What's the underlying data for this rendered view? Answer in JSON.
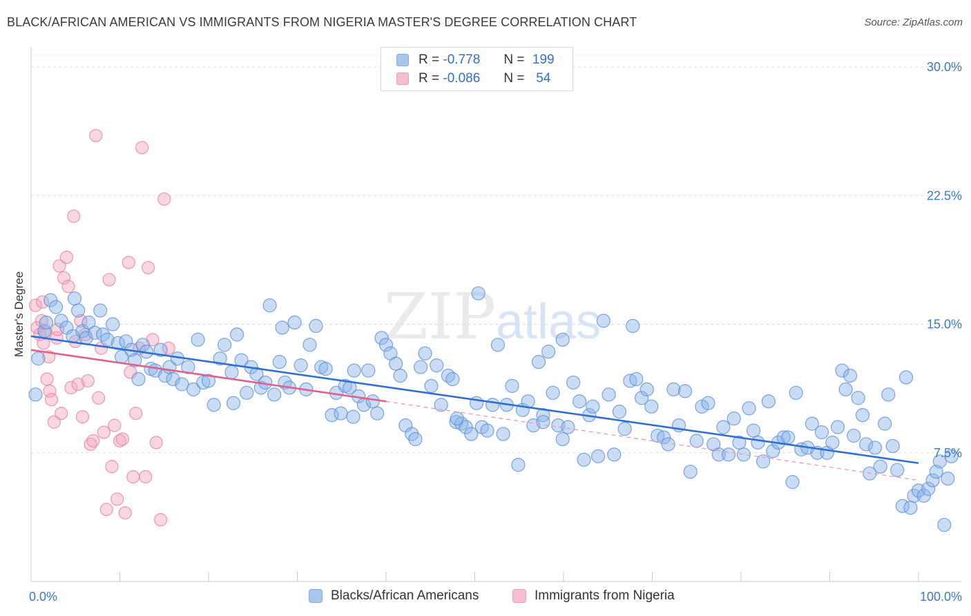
{
  "title": "BLACK/AFRICAN AMERICAN VS IMMIGRANTS FROM NIGERIA MASTER'S DEGREE CORRELATION CHART",
  "source": "Source: ZipAtlas.com",
  "watermark": {
    "zip": "ZIP",
    "atlas": "atlas"
  },
  "legend_top": {
    "rows": [
      {
        "r_label": "R =",
        "r_value": "-0.778",
        "n_label": "N =",
        "n_value": "199",
        "color": "#8ab4e8"
      },
      {
        "r_label": "R =",
        "r_value": "-0.086",
        "n_label": "N =",
        "n_value": "54",
        "color": "#f2a7bd"
      }
    ]
  },
  "legend_bottom": [
    "Blacks/African Americans",
    "Immigrants from Nigeria"
  ],
  "chart_data": {
    "type": "scatter",
    "xlabel": "",
    "ylabel": "Master's Degree",
    "xlim": [
      0,
      100
    ],
    "ylim": [
      0,
      31
    ],
    "x_tick_labels": [
      {
        "value": 0,
        "label": "0.0%"
      },
      {
        "value": 100,
        "label": "100.0%"
      }
    ],
    "y_tick_labels": [
      {
        "value": 7.5,
        "label": "7.5%"
      },
      {
        "value": 15.0,
        "label": "15.0%"
      },
      {
        "value": 22.5,
        "label": "22.5%"
      },
      {
        "value": 30.0,
        "label": "30.0%"
      }
    ],
    "grid": true,
    "series": [
      {
        "name": "Blacks/African Americans",
        "color": "#8ab4e8",
        "stroke": "#5b8fd6",
        "trend": {
          "x": [
            0,
            100
          ],
          "y": [
            14.3,
            6.9
          ],
          "color": "#2f6fd0"
        },
        "dashed_trend": {
          "x": [
            40,
            100
          ],
          "y": [
            10.5,
            5.9
          ],
          "color": "#e59ab4"
        },
        "points": [
          [
            0.5,
            10.9
          ],
          [
            0.8,
            13.0
          ],
          [
            1.5,
            14.6
          ],
          [
            1.7,
            15.1
          ],
          [
            2.2,
            16.4
          ],
          [
            2.8,
            16.0
          ],
          [
            3.4,
            15.2
          ],
          [
            4.0,
            14.8
          ],
          [
            4.7,
            14.3
          ],
          [
            4.9,
            16.5
          ],
          [
            5.3,
            15.8
          ],
          [
            5.8,
            14.6
          ],
          [
            6.2,
            14.2
          ],
          [
            6.5,
            15.1
          ],
          [
            7.2,
            14.5
          ],
          [
            7.8,
            15.8
          ],
          [
            8.1,
            14.4
          ],
          [
            8.6,
            14.1
          ],
          [
            9.2,
            15.0
          ],
          [
            9.8,
            13.9
          ],
          [
            10.2,
            13.1
          ],
          [
            10.7,
            14.0
          ],
          [
            11.3,
            13.5
          ],
          [
            11.7,
            12.9
          ],
          [
            12.1,
            11.8
          ],
          [
            12.6,
            13.8
          ],
          [
            13.0,
            13.4
          ],
          [
            13.5,
            12.4
          ],
          [
            14.0,
            12.3
          ],
          [
            14.6,
            13.5
          ],
          [
            15.1,
            12.0
          ],
          [
            15.6,
            12.5
          ],
          [
            16.0,
            11.8
          ],
          [
            16.5,
            13.0
          ],
          [
            17.0,
            11.5
          ],
          [
            17.7,
            12.5
          ],
          [
            18.3,
            11.2
          ],
          [
            18.8,
            14.1
          ],
          [
            19.4,
            11.6
          ],
          [
            20.0,
            11.7
          ],
          [
            20.6,
            10.3
          ],
          [
            21.3,
            13.0
          ],
          [
            21.8,
            13.8
          ],
          [
            22.6,
            12.2
          ],
          [
            23.2,
            14.4
          ],
          [
            23.7,
            12.9
          ],
          [
            24.3,
            11.0
          ],
          [
            24.8,
            12.5
          ],
          [
            25.4,
            12.1
          ],
          [
            25.9,
            11.3
          ],
          [
            26.4,
            11.6
          ],
          [
            26.9,
            16.1
          ],
          [
            27.4,
            10.9
          ],
          [
            28.0,
            12.8
          ],
          [
            28.6,
            11.6
          ],
          [
            29.1,
            11.3
          ],
          [
            29.7,
            15.1
          ],
          [
            30.4,
            12.6
          ],
          [
            31.0,
            11.2
          ],
          [
            31.4,
            13.8
          ],
          [
            32.1,
            14.9
          ],
          [
            32.7,
            12.5
          ],
          [
            33.2,
            12.4
          ],
          [
            33.9,
            9.7
          ],
          [
            34.4,
            11.0
          ],
          [
            34.9,
            9.8
          ],
          [
            35.4,
            11.4
          ],
          [
            35.9,
            11.3
          ],
          [
            36.4,
            12.3
          ],
          [
            36.9,
            10.8
          ],
          [
            37.5,
            10.3
          ],
          [
            38.0,
            12.3
          ],
          [
            38.5,
            10.5
          ],
          [
            39.0,
            9.8
          ],
          [
            39.5,
            14.2
          ],
          [
            40.0,
            13.8
          ],
          [
            40.5,
            13.3
          ],
          [
            41.1,
            12.7
          ],
          [
            41.6,
            12.0
          ],
          [
            42.2,
            9.1
          ],
          [
            42.9,
            8.6
          ],
          [
            43.3,
            8.3
          ],
          [
            43.9,
            12.5
          ],
          [
            44.4,
            13.3
          ],
          [
            45.1,
            11.4
          ],
          [
            45.7,
            12.6
          ],
          [
            46.2,
            10.3
          ],
          [
            47.0,
            12.0
          ],
          [
            47.5,
            11.8
          ],
          [
            47.9,
            9.3
          ],
          [
            48.5,
            9.2
          ],
          [
            49.0,
            9.0
          ],
          [
            49.6,
            8.6
          ],
          [
            50.2,
            10.4
          ],
          [
            50.8,
            9.0
          ],
          [
            51.4,
            8.8
          ],
          [
            52.0,
            10.3
          ],
          [
            52.6,
            13.8
          ],
          [
            53.2,
            8.6
          ],
          [
            53.6,
            10.3
          ],
          [
            54.2,
            11.4
          ],
          [
            54.9,
            6.8
          ],
          [
            55.4,
            10.0
          ],
          [
            56.0,
            10.5
          ],
          [
            56.6,
            9.1
          ],
          [
            57.2,
            12.8
          ],
          [
            57.7,
            9.7
          ],
          [
            58.3,
            13.4
          ],
          [
            58.8,
            11.0
          ],
          [
            59.4,
            9.1
          ],
          [
            59.9,
            8.3
          ],
          [
            60.5,
            9.0
          ],
          [
            61.1,
            11.6
          ],
          [
            61.8,
            10.5
          ],
          [
            62.3,
            7.1
          ],
          [
            62.9,
            9.7
          ],
          [
            63.3,
            10.2
          ],
          [
            63.9,
            7.3
          ],
          [
            64.5,
            15.2
          ],
          [
            65.1,
            10.9
          ],
          [
            65.7,
            7.4
          ],
          [
            66.3,
            9.9
          ],
          [
            66.9,
            8.9
          ],
          [
            67.5,
            11.7
          ],
          [
            67.8,
            14.9
          ],
          [
            68.2,
            11.8
          ],
          [
            68.8,
            10.7
          ],
          [
            69.4,
            11.2
          ],
          [
            69.9,
            10.2
          ],
          [
            70.6,
            8.5
          ],
          [
            71.3,
            8.4
          ],
          [
            71.8,
            8.0
          ],
          [
            72.4,
            11.2
          ],
          [
            73.0,
            9.1
          ],
          [
            73.7,
            11.1
          ],
          [
            74.3,
            6.4
          ],
          [
            75.0,
            8.2
          ],
          [
            75.6,
            10.2
          ],
          [
            76.3,
            10.4
          ],
          [
            76.9,
            8.0
          ],
          [
            77.5,
            7.4
          ],
          [
            78.0,
            9.0
          ],
          [
            78.6,
            7.4
          ],
          [
            79.2,
            9.5
          ],
          [
            79.8,
            8.1
          ],
          [
            80.3,
            7.4
          ],
          [
            80.9,
            10.1
          ],
          [
            81.4,
            8.8
          ],
          [
            81.9,
            8.1
          ],
          [
            82.5,
            7.0
          ],
          [
            83.1,
            10.5
          ],
          [
            83.6,
            7.6
          ],
          [
            84.2,
            8.1
          ],
          [
            84.8,
            8.4
          ],
          [
            85.3,
            8.4
          ],
          [
            85.8,
            5.8
          ],
          [
            86.2,
            11.0
          ],
          [
            86.8,
            7.7
          ],
          [
            87.5,
            7.8
          ],
          [
            88.0,
            9.2
          ],
          [
            88.6,
            7.5
          ],
          [
            89.1,
            8.7
          ],
          [
            89.7,
            7.5
          ],
          [
            90.3,
            8.1
          ],
          [
            90.9,
            9.0
          ],
          [
            91.4,
            12.3
          ],
          [
            91.8,
            11.2
          ],
          [
            92.3,
            12.0
          ],
          [
            92.7,
            8.5
          ],
          [
            93.2,
            10.7
          ],
          [
            93.7,
            9.7
          ],
          [
            94.1,
            8.0
          ],
          [
            94.5,
            6.3
          ],
          [
            95.1,
            7.8
          ],
          [
            95.7,
            6.7
          ],
          [
            96.2,
            9.2
          ],
          [
            96.6,
            10.9
          ],
          [
            97.1,
            7.9
          ],
          [
            97.6,
            6.5
          ],
          [
            98.2,
            4.4
          ],
          [
            98.6,
            11.9
          ],
          [
            99.1,
            4.3
          ],
          [
            99.5,
            5.0
          ],
          [
            100.0,
            5.3
          ],
          [
            100.6,
            5.0
          ],
          [
            101.1,
            5.4
          ],
          [
            101.6,
            5.9
          ],
          [
            102.0,
            6.4
          ],
          [
            102.4,
            7.0
          ],
          [
            102.9,
            3.3
          ],
          [
            103.3,
            6.0
          ],
          [
            103.7,
            7.3
          ],
          [
            59.9,
            14.1
          ],
          [
            50.4,
            16.8
          ],
          [
            57.7,
            9.3
          ],
          [
            48.0,
            9.5
          ],
          [
            36.3,
            9.6
          ],
          [
            28.3,
            14.8
          ],
          [
            22.8,
            10.4
          ]
        ]
      },
      {
        "name": "Immigrants from Nigeria",
        "color": "#f2a7bd",
        "stroke": "#e77ea0",
        "trend": {
          "x": [
            0,
            40
          ],
          "y": [
            13.5,
            10.5
          ],
          "color": "#e0608a"
        },
        "points": [
          [
            0.5,
            16.1
          ],
          [
            0.7,
            14.8
          ],
          [
            1.0,
            14.4
          ],
          [
            1.2,
            15.2
          ],
          [
            1.4,
            13.9
          ],
          [
            1.6,
            14.5
          ],
          [
            1.8,
            11.8
          ],
          [
            2.1,
            11.1
          ],
          [
            2.3,
            10.6
          ],
          [
            2.6,
            9.3
          ],
          [
            2.9,
            14.2
          ],
          [
            3.2,
            18.4
          ],
          [
            3.4,
            9.8
          ],
          [
            3.7,
            17.7
          ],
          [
            4.0,
            18.9
          ],
          [
            4.2,
            17.2
          ],
          [
            4.5,
            11.3
          ],
          [
            4.8,
            21.3
          ],
          [
            5.0,
            14.0
          ],
          [
            5.3,
            11.5
          ],
          [
            5.6,
            15.2
          ],
          [
            5.8,
            9.6
          ],
          [
            6.1,
            14.4
          ],
          [
            6.4,
            11.7
          ],
          [
            6.7,
            8.0
          ],
          [
            7.0,
            8.2
          ],
          [
            7.3,
            26.0
          ],
          [
            7.6,
            10.7
          ],
          [
            7.9,
            13.6
          ],
          [
            8.2,
            8.7
          ],
          [
            8.5,
            4.2
          ],
          [
            8.8,
            17.6
          ],
          [
            9.1,
            6.7
          ],
          [
            9.4,
            9.1
          ],
          [
            9.7,
            4.8
          ],
          [
            10.0,
            8.2
          ],
          [
            10.3,
            8.3
          ],
          [
            10.6,
            4.0
          ],
          [
            11.0,
            18.6
          ],
          [
            11.2,
            12.2
          ],
          [
            11.5,
            6.1
          ],
          [
            11.8,
            9.8
          ],
          [
            12.2,
            13.6
          ],
          [
            12.5,
            25.3
          ],
          [
            12.9,
            6.1
          ],
          [
            13.2,
            18.3
          ],
          [
            13.7,
            14.1
          ],
          [
            14.1,
            8.1
          ],
          [
            14.6,
            3.6
          ],
          [
            15.0,
            22.3
          ],
          [
            15.5,
            13.6
          ],
          [
            1.3,
            16.3
          ],
          [
            2.0,
            13.1
          ],
          [
            3.0,
            14.7
          ]
        ]
      }
    ]
  }
}
